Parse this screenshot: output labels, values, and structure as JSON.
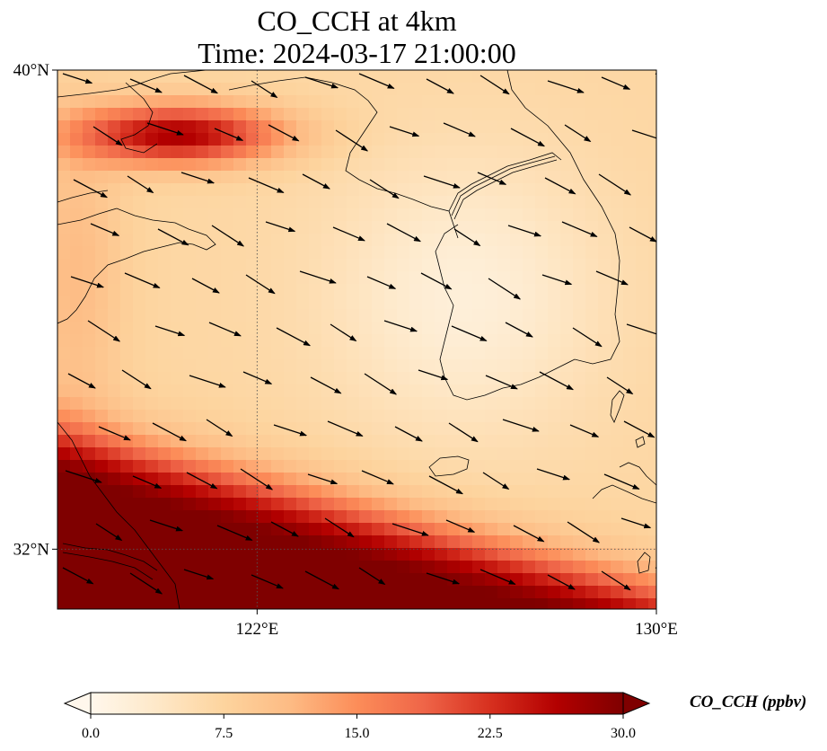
{
  "title": {
    "line1": "CO_CCH at 4km",
    "line2": "Time: 2024-03-17 21:00:00"
  },
  "map": {
    "lon_range": [
      118,
      130
    ],
    "lat_range": [
      31,
      40
    ],
    "lon_ticks": [
      {
        "value": 122,
        "label": "122°E"
      },
      {
        "value": 130,
        "label": "130°E"
      }
    ],
    "lat_ticks": [
      {
        "value": 40,
        "label": "40°N"
      },
      {
        "value": 32,
        "label": "32°N"
      }
    ],
    "gridlines": "dotted",
    "colormap": "OrRd",
    "field_description_high": "high values in north-west (Bohai region) and across the southern edge",
    "vector_field": "wind arrows pointing east-south-east"
  },
  "colorbar": {
    "title": "CO_CCH (ppbv)",
    "min": 0.0,
    "max": 30.0,
    "ticks": [
      "0.0",
      "7.5",
      "15.0",
      "22.5",
      "30.0"
    ],
    "extend": "both",
    "stops": [
      "#fff7ec",
      "#fee8c8",
      "#fdd49e",
      "#fdbb84",
      "#fc8d59",
      "#ef6548",
      "#d7301f",
      "#b30000",
      "#7f0000"
    ]
  }
}
